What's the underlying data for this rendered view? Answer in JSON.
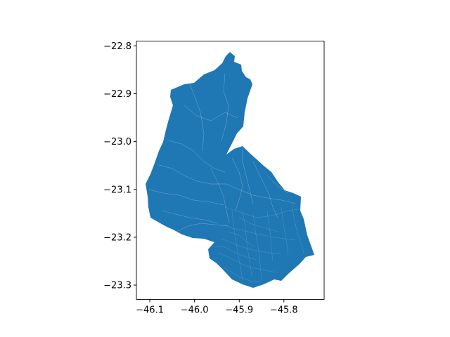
{
  "map": {
    "fill_color": "#1f77b4",
    "border_color": "#ffffff",
    "x_axis": {
      "range": [
        -46.13,
        -45.71
      ],
      "ticks": [
        -46.1,
        -46.0,
        -45.9,
        -45.8
      ],
      "tick_labels": [
        "−46.1",
        "−46.0",
        "−45.9",
        "−45.8"
      ]
    },
    "y_axis": {
      "range": [
        -23.33,
        -22.79
      ],
      "ticks": [
        -22.8,
        -22.9,
        -23.0,
        -23.1,
        -23.2,
        -23.3
      ],
      "tick_labels": [
        "−22.8",
        "−22.9",
        "−23.0",
        "−23.1",
        "−23.2",
        "−23.3"
      ]
    },
    "grid": false
  }
}
